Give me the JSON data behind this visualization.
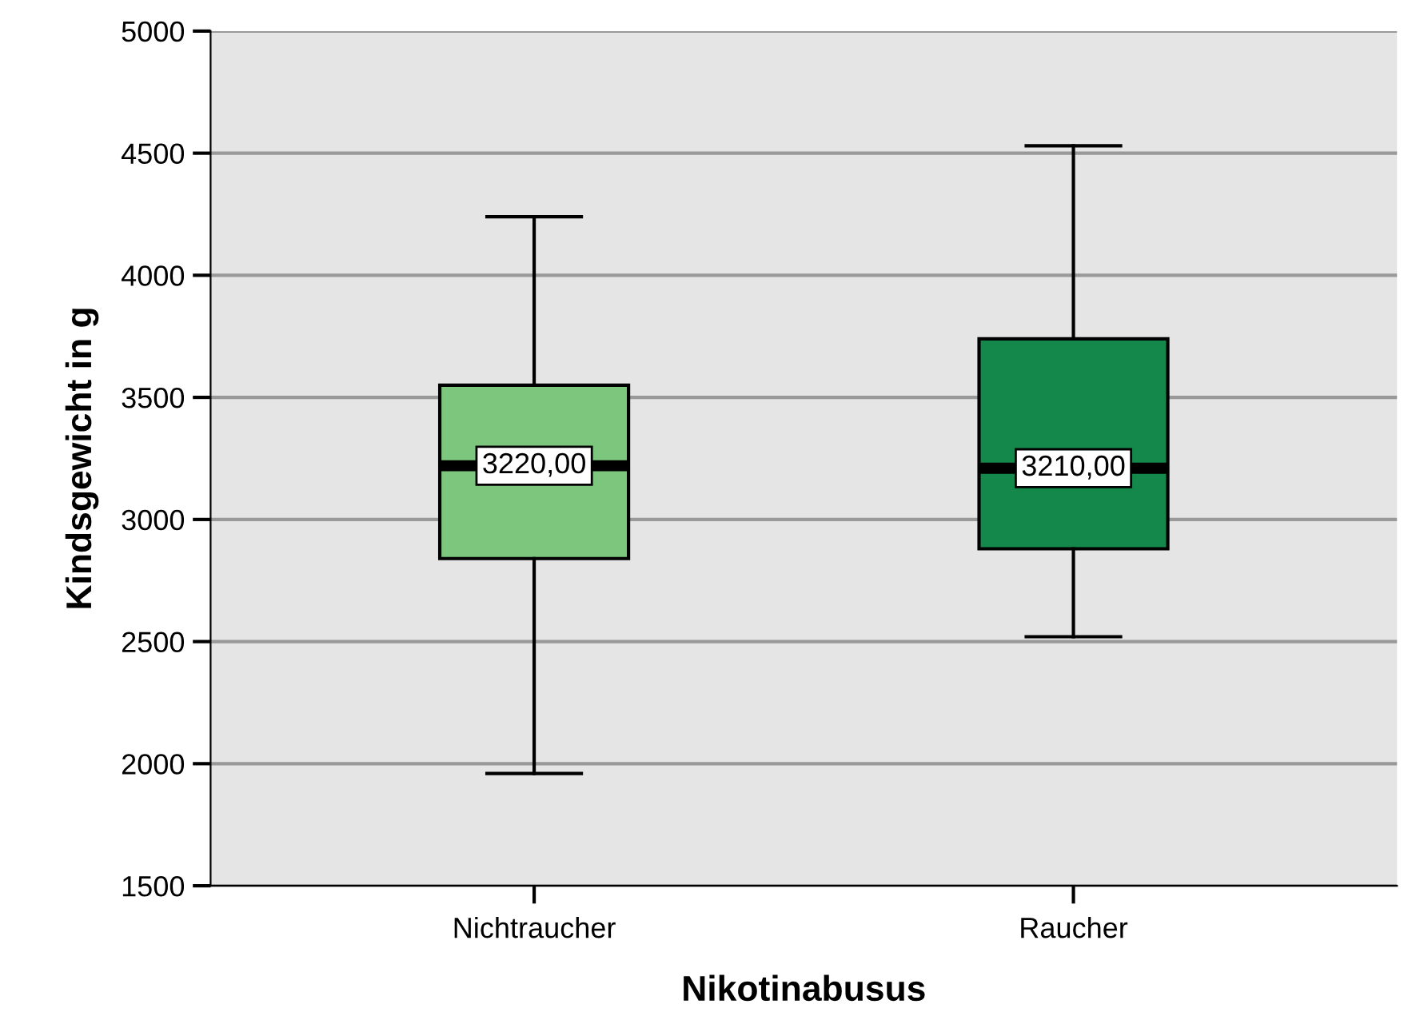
{
  "chart_data": {
    "type": "box",
    "xlabel": "Nikotinabusus",
    "ylabel": "Kindsgewicht in g",
    "categories": [
      "Nichtraucher",
      "Raucher"
    ],
    "boxes": [
      {
        "low": 1960,
        "q1": 2840,
        "median": 3220,
        "q3": 3550,
        "high": 4240
      },
      {
        "low": 2520,
        "q1": 2880,
        "median": 3210,
        "q3": 3740,
        "high": 4530
      }
    ],
    "colors": [
      "#7dc67e",
      "#13884a"
    ],
    "value_labels": [
      "3220,00",
      "3210,00"
    ],
    "ylim": [
      1500,
      5000
    ],
    "yticks": [
      1500,
      2000,
      2500,
      3000,
      3500,
      4000,
      4500,
      5000
    ],
    "grid": "y"
  }
}
